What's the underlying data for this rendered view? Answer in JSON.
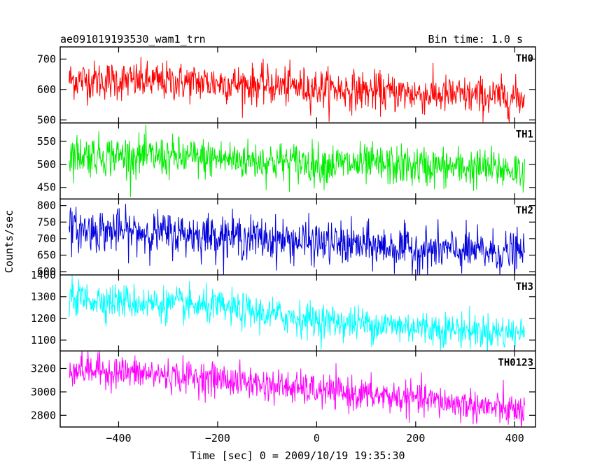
{
  "header": {
    "title": "ae091019193530_wam1_trn",
    "bin_time": "Bin time: 1.0 s"
  },
  "axes": {
    "xlabel": "Time [sec] 0 = 2009/10/19 19:35:30",
    "ylabel": "Counts/sec"
  },
  "chart_data": {
    "type": "line",
    "x_range": [
      -500,
      420
    ],
    "xlim": [
      -518,
      442
    ],
    "x_ticks": [
      -400,
      -200,
      0,
      200,
      400
    ],
    "x_tick_labels": [
      "−400",
      "−200",
      "0",
      "200",
      "400"
    ],
    "series": [
      {
        "name": "TH0",
        "color": "#ff0000",
        "ylim": [
          490,
          740
        ],
        "y_ticks": [
          500,
          600,
          700
        ],
        "y_tick_labels": [
          "500",
          "600",
          "700"
        ],
        "trend": [
          [
            -500,
            632
          ],
          [
            -200,
            622
          ],
          [
            0,
            605
          ],
          [
            200,
            585
          ],
          [
            420,
            572
          ]
        ],
        "noise": 32
      },
      {
        "name": "TH1",
        "color": "#00ee00",
        "ylim": [
          425,
          590
        ],
        "y_ticks": [
          450,
          500,
          550
        ],
        "y_tick_labels": [
          "450",
          "500",
          "550"
        ],
        "trend": [
          [
            -500,
            522
          ],
          [
            -200,
            512
          ],
          [
            0,
            502
          ],
          [
            200,
            496
          ],
          [
            420,
            488
          ]
        ],
        "noise": 22
      },
      {
        "name": "TH2",
        "color": "#0000dd",
        "ylim": [
          590,
          820
        ],
        "y_ticks": [
          600,
          650,
          700,
          750,
          800
        ],
        "y_tick_labels": [
          "600",
          "650",
          "700",
          "750",
          "800"
        ],
        "trend": [
          [
            -500,
            728
          ],
          [
            -200,
            710
          ],
          [
            0,
            688
          ],
          [
            200,
            668
          ],
          [
            420,
            655
          ]
        ],
        "noise": 32
      },
      {
        "name": "TH3",
        "color": "#00ffff",
        "ylim": [
          1050,
          1400
        ],
        "y_ticks": [
          1100,
          1200,
          1300,
          1400
        ],
        "y_tick_labels": [
          "1100",
          "1200",
          "1300",
          "1400"
        ],
        "trend": [
          [
            -500,
            1295
          ],
          [
            -200,
            1250
          ],
          [
            0,
            1190
          ],
          [
            200,
            1160
          ],
          [
            420,
            1130
          ]
        ],
        "noise": 40
      },
      {
        "name": "TH0123",
        "color": "#ff00ff",
        "ylim": [
          2700,
          3350
        ],
        "y_ticks": [
          2800,
          3000,
          3200
        ],
        "y_tick_labels": [
          "2800",
          "3000",
          "3200"
        ],
        "trend": [
          [
            -500,
            3200
          ],
          [
            -200,
            3110
          ],
          [
            0,
            3010
          ],
          [
            200,
            2940
          ],
          [
            420,
            2830
          ]
        ],
        "noise": 70
      }
    ]
  }
}
